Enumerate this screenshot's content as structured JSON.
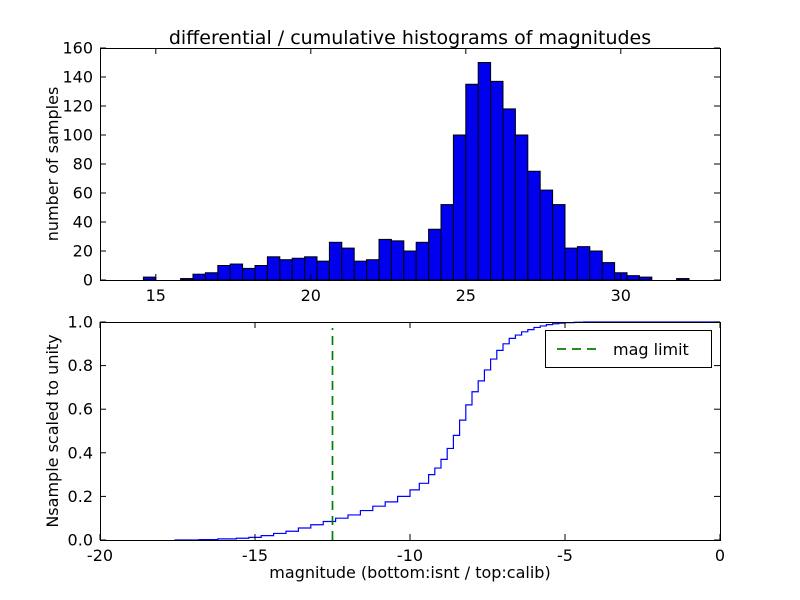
{
  "figure": {
    "background": "#ffffff",
    "frame_color": "#000000"
  },
  "chart_data": [
    {
      "type": "bar",
      "name": "differential-histogram",
      "title": "differential / cumulative histograms of magnitudes",
      "ylabel": "number of samples",
      "xlabel": "",
      "xlim": [
        13.2,
        33.2
      ],
      "ylim": [
        0,
        160
      ],
      "grid": false,
      "xticks": [
        {
          "v": 15,
          "label": "15"
        },
        {
          "v": 20,
          "label": "20"
        },
        {
          "v": 25,
          "label": "25"
        },
        {
          "v": 30,
          "label": "30"
        }
      ],
      "yticks": [
        {
          "v": 0,
          "label": "0"
        },
        {
          "v": 20,
          "label": "20"
        },
        {
          "v": 40,
          "label": "40"
        },
        {
          "v": 60,
          "label": "60"
        },
        {
          "v": 80,
          "label": "80"
        },
        {
          "v": 100,
          "label": "100"
        },
        {
          "v": 120,
          "label": "120"
        },
        {
          "v": 140,
          "label": "140"
        },
        {
          "v": 160,
          "label": "160"
        }
      ],
      "bar_color": "#0000ee",
      "bar_edge_color": "#000000",
      "bins": {
        "start": 14.2,
        "width": 0.4
      },
      "values": [
        0,
        2,
        0,
        0,
        1,
        4,
        5,
        10,
        11,
        8,
        10,
        16,
        14,
        15,
        16,
        13,
        26,
        22,
        13,
        14,
        28,
        27,
        20,
        26,
        35,
        52,
        100,
        135,
        150,
        137,
        118,
        100,
        75,
        62,
        52,
        22,
        23,
        20,
        12,
        5,
        3,
        2,
        0,
        0,
        1
      ]
    },
    {
      "type": "line",
      "name": "cumulative-histogram",
      "title": "",
      "ylabel": "Nsample scaled to unity",
      "xlabel": "magnitude (bottom:isnt / top:calib)",
      "xlim": [
        -20,
        0
      ],
      "ylim": [
        0,
        1.0
      ],
      "grid": false,
      "xticks": [
        {
          "v": -20,
          "label": "-20"
        },
        {
          "v": -15,
          "label": "-15"
        },
        {
          "v": -10,
          "label": "-10"
        },
        {
          "v": -5,
          "label": "-5"
        },
        {
          "v": 0,
          "label": "0"
        }
      ],
      "yticks": [
        {
          "v": 0.0,
          "label": "0.0"
        },
        {
          "v": 0.2,
          "label": "0.2"
        },
        {
          "v": 0.4,
          "label": "0.4"
        },
        {
          "v": 0.6,
          "label": "0.6"
        },
        {
          "v": 0.8,
          "label": "0.8"
        },
        {
          "v": 1.0,
          "label": "1.0"
        }
      ],
      "line_color": "#0000ff",
      "steps": [
        [
          -17.6,
          0.0
        ],
        [
          -16.8,
          0.002
        ],
        [
          -16.2,
          0.005
        ],
        [
          -15.6,
          0.008
        ],
        [
          -15.2,
          0.012
        ],
        [
          -14.8,
          0.02
        ],
        [
          -14.4,
          0.03
        ],
        [
          -14.0,
          0.04
        ],
        [
          -13.6,
          0.055
        ],
        [
          -13.2,
          0.07
        ],
        [
          -12.8,
          0.085
        ],
        [
          -12.4,
          0.1
        ],
        [
          -12.0,
          0.115
        ],
        [
          -11.6,
          0.135
        ],
        [
          -11.2,
          0.155
        ],
        [
          -10.8,
          0.175
        ],
        [
          -10.4,
          0.2
        ],
        [
          -10.0,
          0.23
        ],
        [
          -9.7,
          0.26
        ],
        [
          -9.4,
          0.3
        ],
        [
          -9.2,
          0.33
        ],
        [
          -9.0,
          0.37
        ],
        [
          -8.8,
          0.42
        ],
        [
          -8.6,
          0.48
        ],
        [
          -8.4,
          0.55
        ],
        [
          -8.2,
          0.62
        ],
        [
          -8.0,
          0.68
        ],
        [
          -7.8,
          0.73
        ],
        [
          -7.6,
          0.78
        ],
        [
          -7.4,
          0.83
        ],
        [
          -7.2,
          0.87
        ],
        [
          -7.0,
          0.9
        ],
        [
          -6.8,
          0.925
        ],
        [
          -6.6,
          0.94
        ],
        [
          -6.4,
          0.955
        ],
        [
          -6.2,
          0.965
        ],
        [
          -6.0,
          0.975
        ],
        [
          -5.8,
          0.982
        ],
        [
          -5.6,
          0.988
        ],
        [
          -5.4,
          0.992
        ],
        [
          -5.2,
          0.995
        ],
        [
          -5.0,
          0.997
        ],
        [
          -4.7,
          0.999
        ],
        [
          -4.4,
          1.0
        ],
        [
          0.0,
          1.0
        ]
      ],
      "vline": {
        "x": -12.5,
        "color": "#008000",
        "style": "dashed",
        "label": "mag limit"
      },
      "legend": {
        "label": "mag limit",
        "location": "upper right",
        "sample_color": "#008000"
      }
    }
  ]
}
